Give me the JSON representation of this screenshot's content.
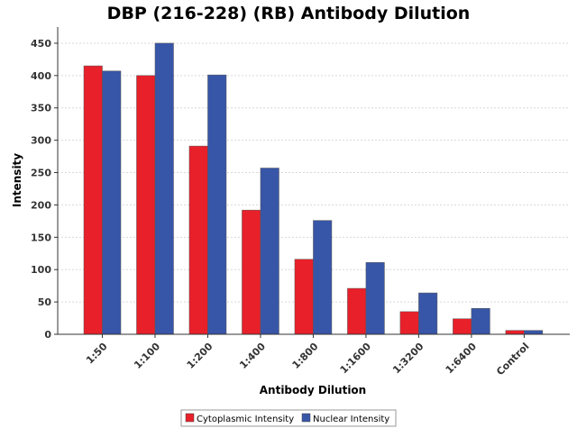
{
  "chart_data": {
    "type": "bar",
    "title": "DBP (216-228) (RB) Antibody Dilution",
    "xlabel": "Antibody Dilution",
    "ylabel": "Intensity",
    "ylim": [
      0,
      475
    ],
    "yticks": [
      0,
      50,
      100,
      150,
      200,
      250,
      300,
      350,
      400,
      450
    ],
    "grid": true,
    "legend_position": "bottom",
    "categories": [
      "1:50",
      "1:100",
      "1:200",
      "1:400",
      "1:800",
      "1:1600",
      "1:3200",
      "1:6400",
      "Control"
    ],
    "series": [
      {
        "name": "Cytoplasmic Intensity",
        "color": "#e8202a",
        "values": [
          415,
          400,
          291,
          192,
          116,
          71,
          35,
          24,
          6
        ]
      },
      {
        "name": "Nuclear Intensity",
        "color": "#3856a8",
        "values": [
          407,
          450,
          401,
          257,
          176,
          111,
          64,
          40,
          6
        ]
      }
    ]
  }
}
